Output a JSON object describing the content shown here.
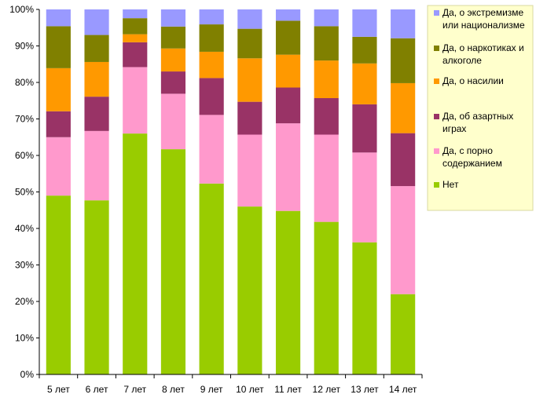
{
  "chart_data": {
    "type": "bar",
    "stacked": true,
    "percent_stacked": true,
    "categories": [
      "5 лет",
      "6 лет",
      "7 лет",
      "8 лет",
      "9 лет",
      "10 лет",
      "11 лет",
      "12 лет",
      "13 лет",
      "14 лет"
    ],
    "ylim": [
      0,
      100
    ],
    "yticks": [
      "0%",
      "10%",
      "20%",
      "30%",
      "40%",
      "50%",
      "60%",
      "70%",
      "80%",
      "90%",
      "100%"
    ],
    "grid": false,
    "legend_position": "right",
    "series": [
      {
        "name": "Нет",
        "color": "#99CC00",
        "values": [
          49,
          47.7,
          66,
          61.7,
          52.3,
          46,
          44.8,
          41.8,
          36.2,
          22
        ]
      },
      {
        "name": "Да, с порно содержанием",
        "color": "#FF99CC",
        "values": [
          16,
          19,
          18.2,
          15.2,
          18.8,
          19.7,
          24,
          23.9,
          24.6,
          29.6
        ]
      },
      {
        "name": "Да, об азартных играх",
        "color": "#993366",
        "values": [
          7.1,
          9.4,
          6.8,
          6.1,
          10.1,
          9,
          9.8,
          10,
          13.2,
          14.5
        ]
      },
      {
        "name": "Да, о насилии",
        "color": "#FF9900",
        "values": [
          11.8,
          9.5,
          2.2,
          6.3,
          7.2,
          11.9,
          9,
          10.3,
          11.2,
          13.7
        ]
      },
      {
        "name": "Да, о наркотиках и алкоголе",
        "color": "#808000",
        "values": [
          11.5,
          7.4,
          4.4,
          6,
          7.5,
          8.1,
          9.3,
          9.4,
          7.3,
          12.3
        ]
      },
      {
        "name": "Да, о экстремизме или национализме",
        "color": "#9999FF",
        "values": [
          4.6,
          7,
          2.4,
          4.7,
          4.1,
          5.3,
          3.1,
          4.6,
          7.5,
          7.9
        ]
      }
    ]
  },
  "legend": {
    "items": [
      {
        "line1": "Да, о экстремизме",
        "line2": "или национализме",
        "color": "#9999FF"
      },
      {
        "line1": "Да, о наркотиках и",
        "line2": "алкоголе",
        "color": "#808000"
      },
      {
        "line1": "Да, о насилии",
        "line2": "",
        "color": "#FF9900"
      },
      {
        "line1": "Да, об азартных",
        "line2": "играх",
        "color": "#993366"
      },
      {
        "line1": "Да, с порно",
        "line2": "содержанием",
        "color": "#FF99CC"
      },
      {
        "line1": "Нет",
        "line2": "",
        "color": "#99CC00"
      }
    ]
  }
}
